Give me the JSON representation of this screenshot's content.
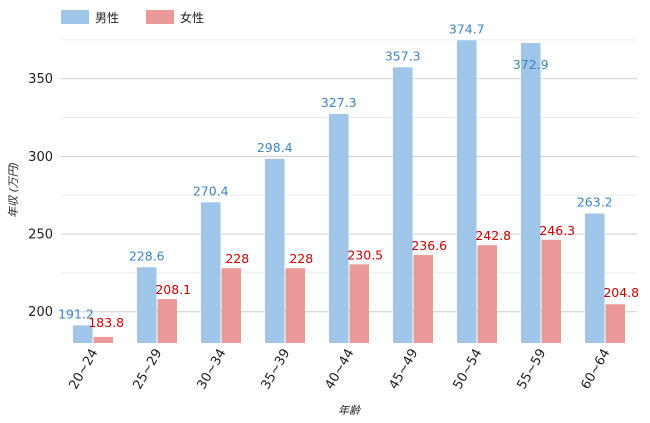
{
  "chart_data": {
    "type": "bar",
    "categories": [
      "20~24",
      "25~29",
      "30~34",
      "35~39",
      "40~44",
      "45~49",
      "50~54",
      "55~59",
      "60~64"
    ],
    "series": [
      {
        "name": "男性",
        "values": [
          191.2,
          228.6,
          270.4,
          298.4,
          327.3,
          357.3,
          374.7,
          372.9,
          263.2
        ],
        "labels": [
          "191.2",
          "228.6",
          "270.4",
          "298.4",
          "327.3",
          "357.3",
          "374.7",
          "372.9",
          "263.2"
        ],
        "color": "#9fc5e8",
        "label_color": "#3d85c6"
      },
      {
        "name": "女性",
        "values": [
          183.8,
          208.1,
          228,
          228,
          230.5,
          236.6,
          242.8,
          246.3,
          204.8
        ],
        "labels": [
          "183.8",
          "208.1",
          "228",
          "228",
          "230.5",
          "236.6",
          "242.8",
          "246.3",
          "204.8"
        ],
        "color": "#ea9999",
        "label_color": "#cc0000"
      }
    ],
    "xlabel": "年齢",
    "ylabel": "年収 (万円)",
    "ylim": [
      180,
      375
    ],
    "yticks": [
      200,
      250,
      300,
      350
    ],
    "grid": true,
    "legend_position": "top-left"
  }
}
